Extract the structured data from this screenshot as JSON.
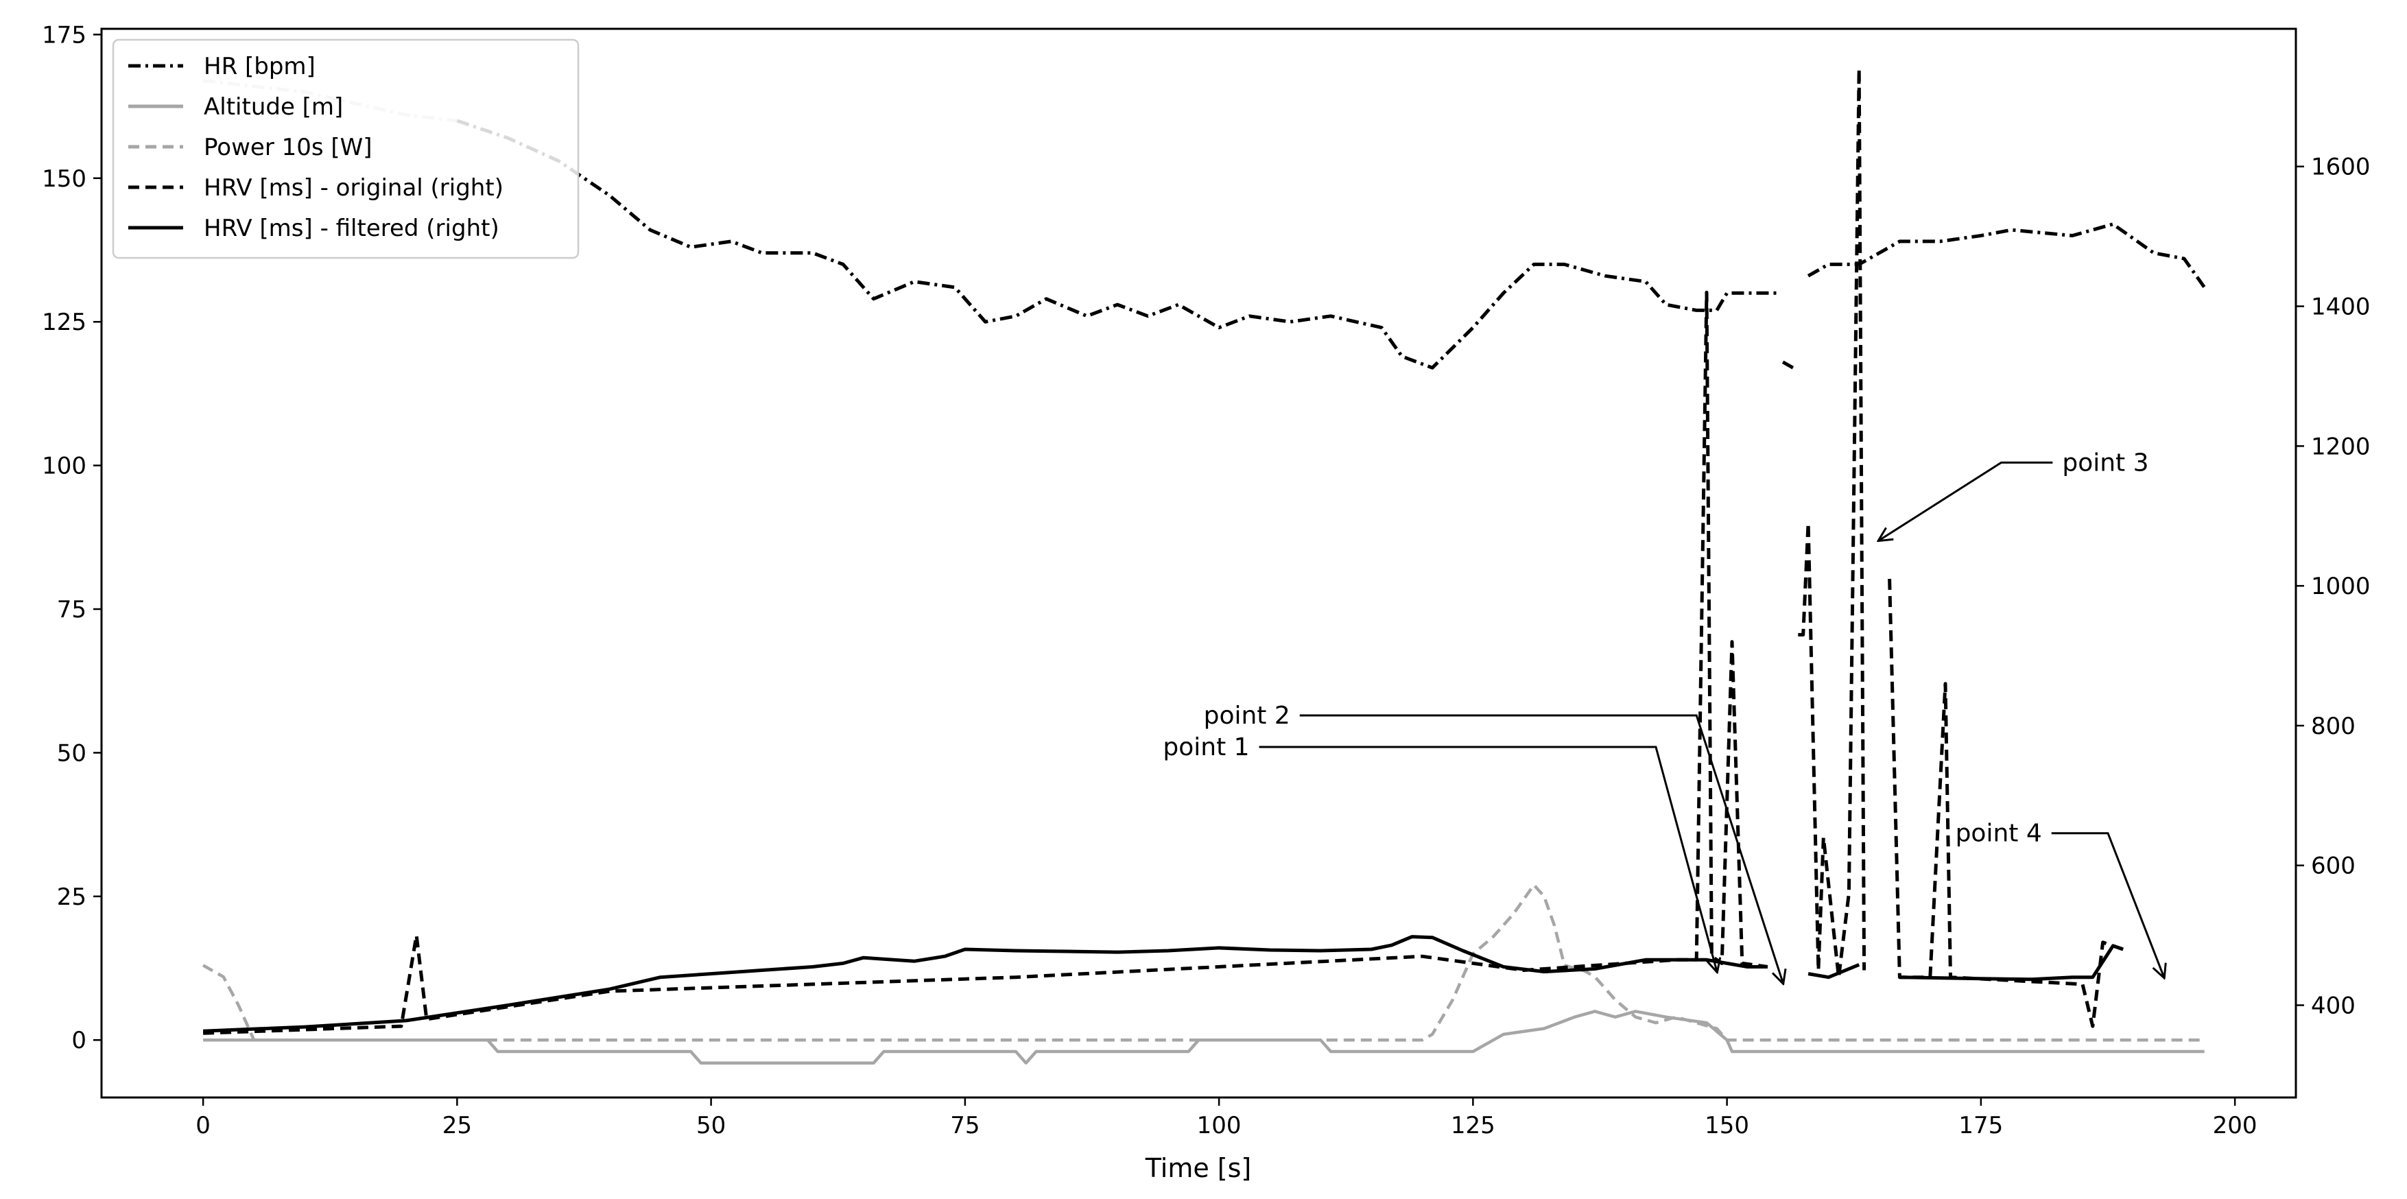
{
  "chart_data": {
    "type": "line",
    "title": "",
    "xlabel": "Time [s]",
    "ylabel": "",
    "ylabel_right": "",
    "xlim": [
      -10,
      206
    ],
    "ylim": [
      -10,
      176
    ],
    "ylim_right": [
      268,
      1797
    ],
    "x_ticks": [
      0,
      25,
      50,
      75,
      100,
      125,
      150,
      175,
      200
    ],
    "y_ticks": [
      0,
      25,
      50,
      75,
      100,
      125,
      150,
      175
    ],
    "y_ticks_right": [
      400,
      600,
      800,
      1000,
      1200,
      1400,
      1600
    ],
    "grid": false,
    "legend_position": "top-left",
    "series": [
      {
        "name": "HR [bpm]",
        "axis": "left",
        "color": "#000000",
        "style": "dashdot",
        "fade_until_x": 27,
        "segments": [
          [
            [
              0,
              167
            ],
            [
              5,
              166
            ],
            [
              10,
              165
            ],
            [
              15,
              163
            ],
            [
              20,
              161
            ],
            [
              25,
              160
            ],
            [
              30,
              157
            ],
            [
              35,
              153
            ],
            [
              40,
              147
            ],
            [
              44,
              141
            ],
            [
              48,
              138
            ],
            [
              52,
              139
            ],
            [
              55,
              137
            ],
            [
              60,
              137
            ],
            [
              63,
              135
            ],
            [
              66,
              129
            ],
            [
              70,
              132
            ],
            [
              74,
              131
            ],
            [
              77,
              125
            ],
            [
              80,
              126
            ],
            [
              83,
              129
            ],
            [
              87,
              126
            ],
            [
              90,
              128
            ],
            [
              93,
              126
            ],
            [
              96,
              128
            ],
            [
              100,
              124
            ],
            [
              103,
              126
            ],
            [
              107,
              125
            ],
            [
              111,
              126
            ],
            [
              116,
              124
            ],
            [
              118,
              119
            ],
            [
              121,
              117
            ],
            [
              125,
              124
            ],
            [
              128,
              130
            ],
            [
              131,
              135
            ],
            [
              134,
              135
            ],
            [
              138,
              133
            ],
            [
              142,
              132
            ],
            [
              144,
              128
            ],
            [
              147,
              127
            ],
            [
              149,
              127
            ],
            [
              150,
              130
            ],
            [
              155,
              130
            ]
          ],
          [
            [
              155.5,
              118
            ],
            [
              156.5,
              117
            ]
          ],
          [
            [
              158,
              133
            ],
            [
              160,
              135
            ],
            [
              163,
              135
            ],
            [
              167,
              139
            ],
            [
              171,
              139
            ],
            [
              175,
              140
            ],
            [
              178,
              141
            ],
            [
              184,
              140
            ],
            [
              188,
              142
            ],
            [
              192,
              137
            ],
            [
              195,
              136
            ],
            [
              197,
              131
            ]
          ]
        ]
      },
      {
        "name": "Altitude [m]",
        "axis": "left",
        "color": "#a6a6a6",
        "style": "solid",
        "segments": [
          [
            [
              0,
              0
            ],
            [
              28,
              0
            ],
            [
              29,
              -2
            ],
            [
              48,
              -2
            ],
            [
              49,
              -4
            ],
            [
              66,
              -4
            ],
            [
              67,
              -2
            ],
            [
              80,
              -2
            ],
            [
              81,
              -4
            ],
            [
              82,
              -2
            ],
            [
              97,
              -2
            ],
            [
              98,
              0
            ],
            [
              110,
              0
            ],
            [
              111,
              -2
            ],
            [
              125,
              -2
            ],
            [
              128,
              1
            ],
            [
              132,
              2
            ],
            [
              135,
              4
            ],
            [
              137,
              5
            ],
            [
              139,
              4
            ],
            [
              141,
              5
            ],
            [
              144,
              4
            ],
            [
              148,
              3
            ],
            [
              150,
              0
            ],
            [
              150.5,
              -2
            ],
            [
              197,
              -2
            ]
          ]
        ]
      },
      {
        "name": "Power 10s [W]",
        "axis": "left",
        "color": "#a6a6a6",
        "style": "dashed",
        "segments": [
          [
            [
              0,
              13
            ],
            [
              2,
              11
            ],
            [
              3.5,
              6
            ],
            [
              5,
              0
            ],
            [
              120,
              0
            ],
            [
              121,
              1
            ],
            [
              123,
              7
            ],
            [
              125,
              15
            ],
            [
              127,
              18
            ],
            [
              129,
              22
            ],
            [
              131,
              27
            ],
            [
              132,
              25
            ],
            [
              133,
              20
            ],
            [
              134,
              13
            ],
            [
              136,
              12
            ],
            [
              137,
              11
            ],
            [
              139,
              7
            ],
            [
              141,
              4
            ],
            [
              143,
              3
            ],
            [
              145,
              4
            ],
            [
              147,
              3
            ],
            [
              149,
              2
            ],
            [
              150,
              0
            ],
            [
              197,
              0
            ]
          ]
        ]
      },
      {
        "name": "HRV [ms] - original (right)",
        "axis": "right",
        "color": "#000000",
        "style": "dashed",
        "segments": [
          [
            [
              0,
              360
            ],
            [
              19.5,
              370
            ],
            [
              21,
              500
            ],
            [
              22,
              380
            ],
            [
              40,
              420
            ],
            [
              80,
              440
            ],
            [
              120,
              470
            ],
            [
              130,
              450
            ],
            [
              145,
              465
            ],
            [
              147,
              465
            ],
            [
              148,
              1420
            ],
            [
              148.5,
              470
            ],
            [
              149.5,
              460
            ],
            [
              150.5,
              920
            ],
            [
              151.5,
              460
            ],
            [
              154,
              455
            ]
          ],
          [
            [
              157,
              930
            ],
            [
              157.5,
              930
            ],
            [
              158,
              1090
            ],
            [
              159,
              450
            ],
            [
              159.5,
              640
            ],
            [
              161,
              440
            ],
            [
              162,
              560
            ],
            [
              163,
              1740
            ],
            [
              163.5,
              450
            ]
          ],
          [
            [
              166,
              1010
            ],
            [
              167,
              440
            ],
            [
              170,
              440
            ],
            [
              171.5,
              860
            ],
            [
              172,
              440
            ],
            [
              185,
              430
            ],
            [
              186,
              370
            ],
            [
              186.5,
              430
            ],
            [
              187,
              490
            ],
            [
              189,
              480
            ]
          ]
        ]
      },
      {
        "name": "HRV [ms] - filtered (right)",
        "axis": "right",
        "color": "#000000",
        "style": "solid",
        "segments": [
          [
            [
              0,
              363
            ],
            [
              10,
              369
            ],
            [
              20,
              378
            ],
            [
              30,
              400
            ],
            [
              40,
              423
            ],
            [
              45,
              440
            ],
            [
              50,
              445
            ],
            [
              55,
              450
            ],
            [
              60,
              455
            ],
            [
              63,
              460
            ],
            [
              65,
              468
            ],
            [
              70,
              463
            ],
            [
              73,
              470
            ],
            [
              75,
              480
            ],
            [
              80,
              478
            ],
            [
              85,
              477
            ],
            [
              90,
              476
            ],
            [
              95,
              478
            ],
            [
              100,
              482
            ],
            [
              105,
              479
            ],
            [
              110,
              478
            ],
            [
              115,
              480
            ],
            [
              117,
              486
            ],
            [
              119,
              498
            ],
            [
              121,
              497
            ],
            [
              124,
              478
            ],
            [
              128,
              455
            ],
            [
              132,
              448
            ],
            [
              137,
              452
            ],
            [
              142,
              465
            ],
            [
              148,
              465
            ],
            [
              152,
              455
            ],
            [
              154,
              455
            ]
          ],
          [
            [
              158,
              445
            ],
            [
              160,
              440
            ],
            [
              163,
              458
            ]
          ],
          [
            [
              167,
              440
            ],
            [
              175,
              438
            ],
            [
              180,
              437
            ],
            [
              184,
              440
            ],
            [
              186,
              440
            ],
            [
              188,
              485
            ],
            [
              189,
              480
            ]
          ]
        ]
      }
    ],
    "annotations": [
      {
        "label": "point 1",
        "text_at": [
          103,
          51
        ],
        "elbow_at": [
          143,
          51
        ],
        "arrow_to": [
          149,
          12
        ]
      },
      {
        "label": "point 2",
        "text_at": [
          107,
          56.5
        ],
        "elbow_at": [
          147,
          56.5
        ],
        "arrow_to": [
          155.5,
          10
        ]
      },
      {
        "label": "point 3",
        "text_at": [
          183,
          100.5
        ],
        "elbow_at": [
          177,
          100.5
        ],
        "arrow_to": [
          165,
          87
        ]
      },
      {
        "label": "point 4",
        "text_at": [
          181,
          36
        ],
        "elbow_at": [
          187.5,
          36
        ],
        "arrow_to": [
          193,
          11
        ]
      }
    ]
  }
}
